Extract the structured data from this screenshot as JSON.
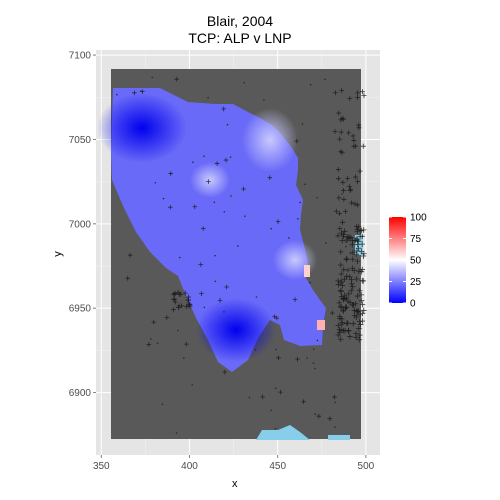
{
  "chart_data": {
    "type": "heatmap",
    "title": "Blair, 2004",
    "subtitle": "TCP: ALP v LNP",
    "xlabel": "x",
    "ylabel": "y",
    "xlim": [
      347,
      508
    ],
    "ylim": [
      6863,
      7103
    ],
    "x_ticks": [
      350,
      400,
      450,
      500
    ],
    "y_ticks": [
      6900,
      6950,
      7000,
      7050,
      7100
    ],
    "grid": true,
    "panel_background": "#e5e5e5",
    "map_background": "#595959",
    "legend": {
      "position": "right",
      "values": [
        0,
        25,
        50,
        75,
        100
      ],
      "colors": [
        "#0000ff",
        "#ffffff",
        "#ff0000"
      ]
    },
    "markers": {
      "shape": "+",
      "color": "#1a1a1a"
    }
  }
}
